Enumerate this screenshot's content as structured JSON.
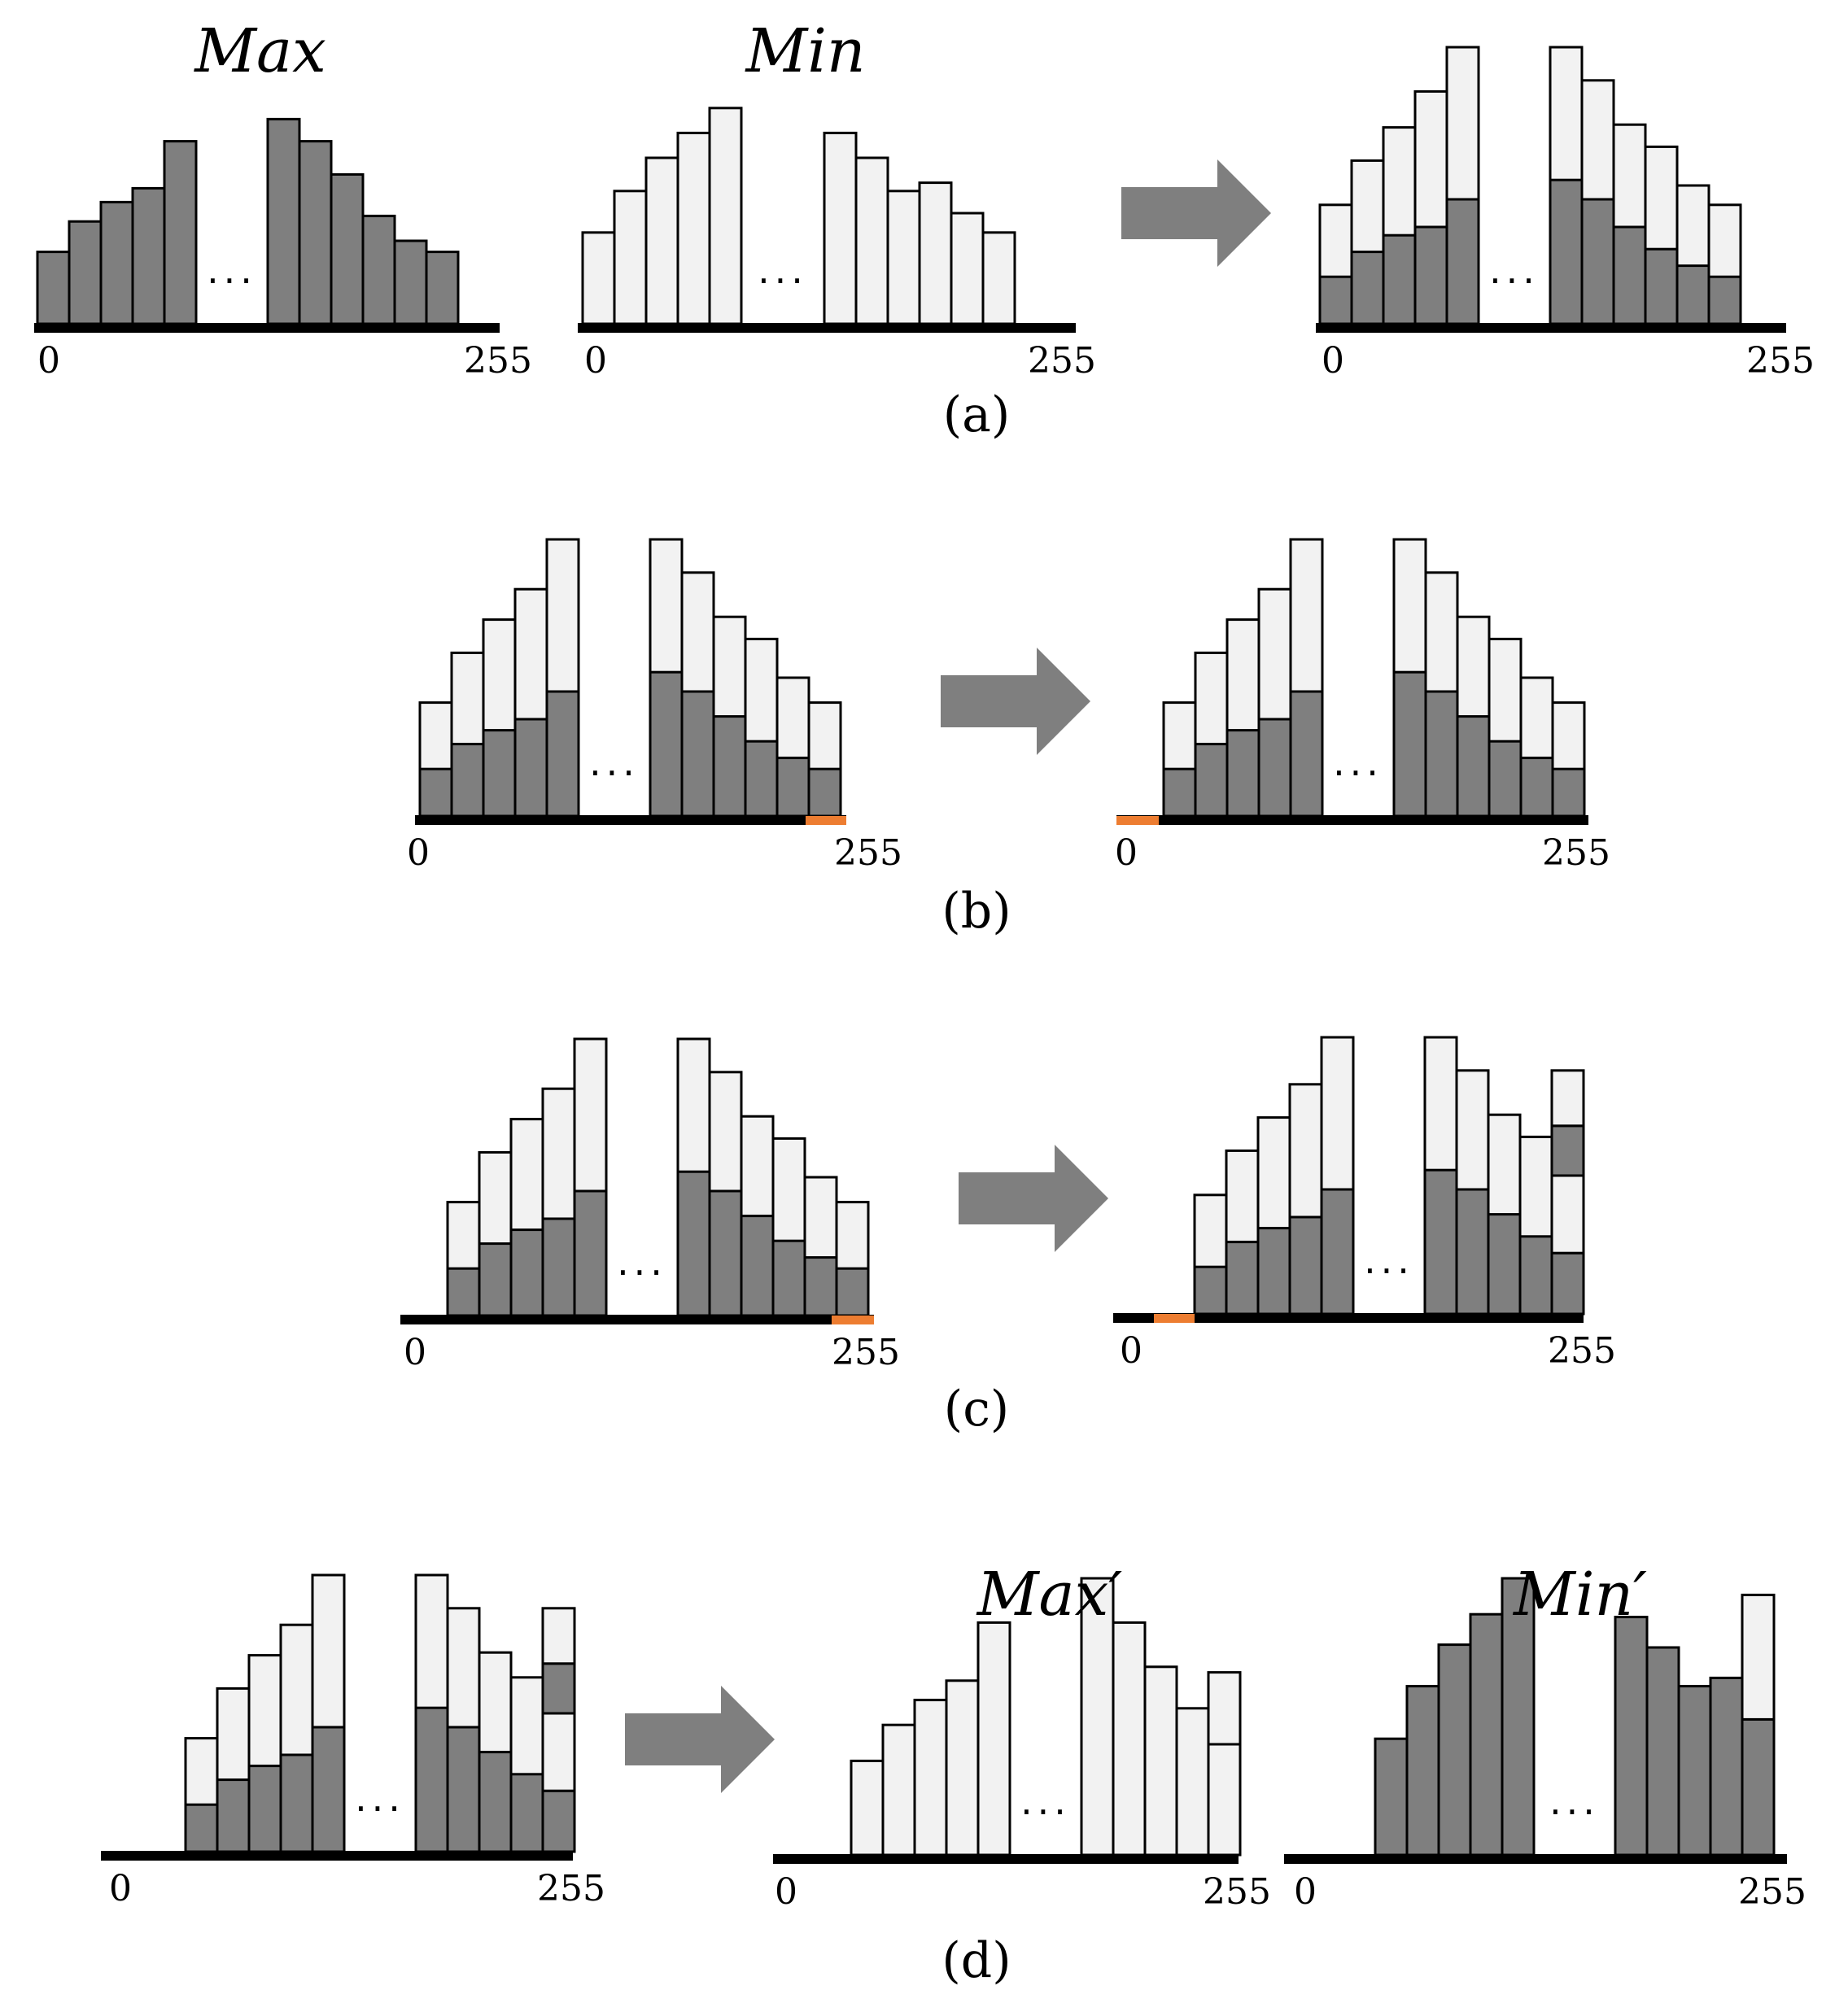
{
  "colors": {
    "dark_bar": "#7f7f7f",
    "light_bar": "#f2f2f2",
    "bar_outline": "#000000",
    "axis": "#000000",
    "arrow": "#7f7f7f",
    "highlight": "#ed7d31"
  },
  "ellipsis": "...",
  "panels": [
    {
      "label": "(a)",
      "arrow_icon": "right-arrow-icon",
      "histograms": [
        {
          "title": "Max",
          "axis_min": "0",
          "axis_max": "255",
          "bars": [
            {
              "dark": 0.26
            },
            {
              "dark": 0.37
            },
            {
              "dark": 0.44
            },
            {
              "dark": 0.49
            },
            {
              "dark": 0.66
            },
            {
              "gap": true
            },
            {
              "dark": 0.74
            },
            {
              "dark": 0.66
            },
            {
              "dark": 0.54
            },
            {
              "dark": 0.39
            },
            {
              "dark": 0.3
            },
            {
              "dark": 0.26
            }
          ]
        },
        {
          "title": "Min",
          "axis_min": "0",
          "axis_max": "255",
          "bars": [
            {
              "light": 0.33
            },
            {
              "light": 0.48
            },
            {
              "light": 0.6
            },
            {
              "light": 0.69
            },
            {
              "light": 0.78
            },
            {
              "gap": true
            },
            {
              "light": 0.69
            },
            {
              "light": 0.6
            },
            {
              "light": 0.48
            },
            {
              "light": 0.51
            },
            {
              "light": 0.4
            },
            {
              "light": 0.33
            }
          ]
        },
        {
          "title": "",
          "axis_min": "0",
          "axis_max": "255",
          "bars": [
            {
              "dark": 0.17,
              "light": 0.43
            },
            {
              "dark": 0.26,
              "light": 0.59
            },
            {
              "dark": 0.32,
              "light": 0.71
            },
            {
              "dark": 0.35,
              "light": 0.84
            },
            {
              "dark": 0.45,
              "light": 1.0
            },
            {
              "gap": true
            },
            {
              "dark": 0.52,
              "light": 1.0
            },
            {
              "dark": 0.45,
              "light": 0.88
            },
            {
              "dark": 0.35,
              "light": 0.72
            },
            {
              "dark": 0.27,
              "light": 0.64
            },
            {
              "dark": 0.21,
              "light": 0.5
            },
            {
              "dark": 0.17,
              "light": 0.43
            }
          ]
        }
      ]
    },
    {
      "label": "(b)",
      "arrow_icon": "right-arrow-icon",
      "histograms": [
        {
          "title": "",
          "axis_min": "0",
          "axis_max": "255",
          "highlight": "right",
          "bars": [
            {
              "dark": 0.17,
              "light": 0.41
            },
            {
              "dark": 0.26,
              "light": 0.59
            },
            {
              "dark": 0.31,
              "light": 0.71
            },
            {
              "dark": 0.35,
              "light": 0.82
            },
            {
              "dark": 0.45,
              "light": 1.0
            },
            {
              "gap": true
            },
            {
              "dark": 0.52,
              "light": 1.0
            },
            {
              "dark": 0.45,
              "light": 0.88
            },
            {
              "dark": 0.36,
              "light": 0.72
            },
            {
              "dark": 0.27,
              "light": 0.64
            },
            {
              "dark": 0.21,
              "light": 0.5
            },
            {
              "dark": 0.17,
              "light": 0.41
            }
          ]
        },
        {
          "title": "",
          "axis_min": "0",
          "axis_max": "255",
          "highlight": "left",
          "bars": [
            {
              "dark": 0.17,
              "light": 0.41
            },
            {
              "dark": 0.26,
              "light": 0.59
            },
            {
              "dark": 0.31,
              "light": 0.71
            },
            {
              "dark": 0.35,
              "light": 0.82
            },
            {
              "dark": 0.45,
              "light": 1.0
            },
            {
              "gap": true
            },
            {
              "dark": 0.52,
              "light": 1.0
            },
            {
              "dark": 0.45,
              "light": 0.88
            },
            {
              "dark": 0.36,
              "light": 0.72
            },
            {
              "dark": 0.27,
              "light": 0.64
            },
            {
              "dark": 0.21,
              "light": 0.5
            },
            {
              "dark": 0.17,
              "light": 0.41
            }
          ]
        }
      ]
    },
    {
      "label": "(c)",
      "arrow_icon": "right-arrow-icon",
      "histograms": [
        {
          "title": "",
          "axis_min": "0",
          "axis_max": "255",
          "highlight": "right",
          "bars": [
            {
              "dark": 0.17,
              "light": 0.41
            },
            {
              "dark": 0.26,
              "light": 0.59
            },
            {
              "dark": 0.31,
              "light": 0.71
            },
            {
              "dark": 0.35,
              "light": 0.82
            },
            {
              "dark": 0.45,
              "light": 1.0
            },
            {
              "gap": true
            },
            {
              "dark": 0.52,
              "light": 1.0
            },
            {
              "dark": 0.45,
              "light": 0.88
            },
            {
              "dark": 0.36,
              "light": 0.72
            },
            {
              "dark": 0.27,
              "light": 0.64
            },
            {
              "dark": 0.21,
              "light": 0.5
            },
            {
              "dark": 0.17,
              "light": 0.41
            }
          ]
        },
        {
          "title": "",
          "axis_min": "0",
          "axis_max": "255",
          "highlight": "left-inset",
          "bars": [
            {
              "dark": 0.17,
              "light": 0.43
            },
            {
              "dark": 0.26,
              "light": 0.59
            },
            {
              "dark": 0.31,
              "light": 0.71
            },
            {
              "dark": 0.35,
              "light": 0.83
            },
            {
              "dark": 0.45,
              "light": 1.0
            },
            {
              "gap": true
            },
            {
              "dark": 0.52,
              "light": 1.0
            },
            {
              "dark": 0.45,
              "light": 0.88
            },
            {
              "dark": 0.36,
              "light": 0.72
            },
            {
              "dark": 0.28,
              "light": 0.64
            },
            {
              "stack": [
                0.22,
                0.5,
                0.68,
                0.88
              ]
            }
          ]
        }
      ]
    },
    {
      "label": "(d)",
      "arrow_icon": "right-arrow-icon",
      "histograms": [
        {
          "title": "",
          "axis_min": "0",
          "axis_max": "255",
          "bars": [
            {
              "dark": 0.17,
              "light": 0.41
            },
            {
              "dark": 0.26,
              "light": 0.59
            },
            {
              "dark": 0.31,
              "light": 0.71
            },
            {
              "dark": 0.35,
              "light": 0.82
            },
            {
              "dark": 0.45,
              "light": 1.0
            },
            {
              "gap": true
            },
            {
              "dark": 0.52,
              "light": 1.0
            },
            {
              "dark": 0.45,
              "light": 0.88
            },
            {
              "dark": 0.36,
              "light": 0.72
            },
            {
              "dark": 0.28,
              "light": 0.63
            },
            {
              "stack": [
                0.22,
                0.5,
                0.68,
                0.88
              ]
            }
          ]
        },
        {
          "title": "Max′",
          "axis_min": "0",
          "axis_max": "255",
          "bars": [
            {
              "light": 0.34
            },
            {
              "light": 0.47
            },
            {
              "light": 0.56
            },
            {
              "light": 0.63
            },
            {
              "light": 0.84
            },
            {
              "gap": true
            },
            {
              "light": 1.0
            },
            {
              "light": 0.84
            },
            {
              "light": 0.68
            },
            {
              "light": 0.53
            },
            {
              "stack_light": [
                0.4,
                0.66
              ]
            }
          ]
        },
        {
          "title": "Min′",
          "axis_min": "0",
          "axis_max": "255",
          "bars": [
            {
              "dark": 0.42
            },
            {
              "dark": 0.61
            },
            {
              "dark": 0.76
            },
            {
              "dark": 0.87
            },
            {
              "dark": 1.0
            },
            {
              "gap": true
            },
            {
              "dark": 0.86
            },
            {
              "dark": 0.75
            },
            {
              "dark": 0.61
            },
            {
              "dark": 0.64
            },
            {
              "stack": [
                0.49,
                0.94
              ]
            }
          ]
        }
      ]
    }
  ]
}
